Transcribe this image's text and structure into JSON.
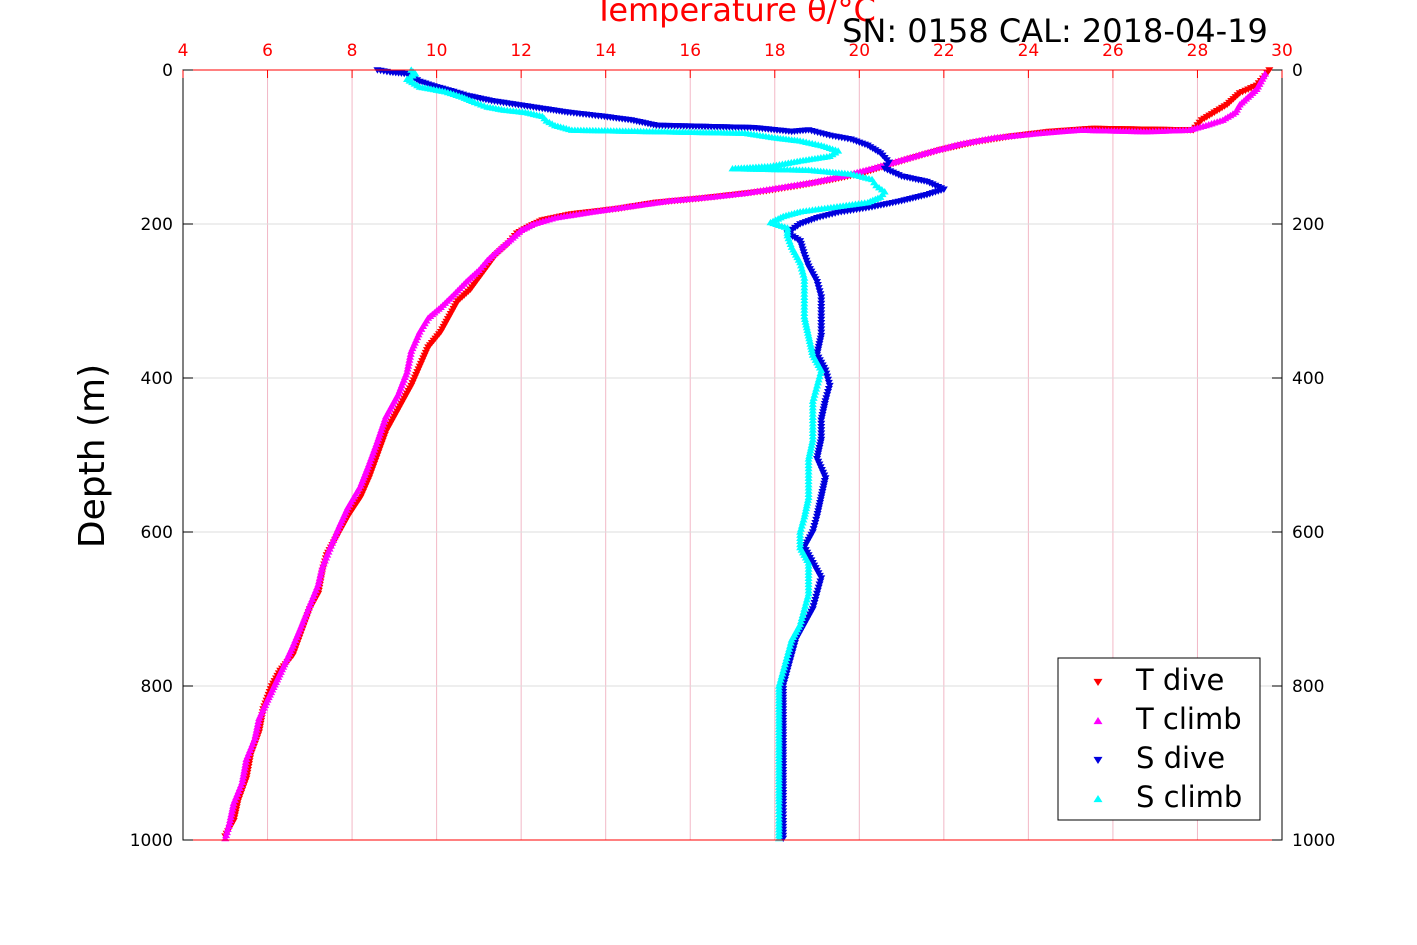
{
  "chart_data": {
    "type": "scatter",
    "title": "Temperature θ/°C",
    "subtitle": "SN: 0158  CAL: 2018-04-19",
    "xlabel": "Temperature θ/°C",
    "ylabel": "Depth (m)",
    "xlim": [
      4,
      30
    ],
    "ylim": [
      0,
      1000
    ],
    "y_reversed": true,
    "grid": true,
    "legend_position": "bottom-right",
    "x_ticks": [
      "4",
      "6",
      "8",
      "10",
      "12",
      "14",
      "16",
      "18",
      "20",
      "22",
      "24",
      "26",
      "28",
      "30"
    ],
    "y_ticks": [
      "0",
      "200",
      "400",
      "600",
      "800",
      "1000"
    ],
    "colors": {
      "axis_top": "#ff0000",
      "grid": "#dddddd",
      "grid_x": "#f2b8c6"
    },
    "series": [
      {
        "name": "T dive",
        "marker": "triangle-down",
        "color": "#ff0000",
        "points": [
          [
            29.7,
            0
          ],
          [
            29.6,
            8
          ],
          [
            29.4,
            20
          ],
          [
            29.0,
            30
          ],
          [
            28.7,
            45
          ],
          [
            28.4,
            55
          ],
          [
            28.1,
            65
          ],
          [
            27.9,
            78
          ],
          [
            25.5,
            76
          ],
          [
            24.5,
            80
          ],
          [
            23.6,
            86
          ],
          [
            22.7,
            94
          ],
          [
            21.9,
            104
          ],
          [
            21.2,
            115
          ],
          [
            20.6,
            125
          ],
          [
            20.0,
            135
          ],
          [
            19.3,
            143
          ],
          [
            18.6,
            150
          ],
          [
            17.8,
            157
          ],
          [
            17.0,
            162
          ],
          [
            16.2,
            167
          ],
          [
            15.2,
            172
          ],
          [
            14.3,
            180
          ],
          [
            13.2,
            187
          ],
          [
            12.5,
            195
          ],
          [
            12.2,
            203
          ],
          [
            11.9,
            212
          ],
          [
            11.7,
            225
          ],
          [
            11.4,
            240
          ],
          [
            11.2,
            255
          ],
          [
            11.0,
            270
          ],
          [
            10.8,
            285
          ],
          [
            10.5,
            300
          ],
          [
            10.3,
            320
          ],
          [
            10.1,
            340
          ],
          [
            9.8,
            360
          ],
          [
            9.6,
            385
          ],
          [
            9.4,
            410
          ],
          [
            9.1,
            440
          ],
          [
            8.8,
            470
          ],
          [
            8.6,
            500
          ],
          [
            8.4,
            530
          ],
          [
            8.2,
            555
          ],
          [
            7.9,
            580
          ],
          [
            7.6,
            610
          ],
          [
            7.4,
            630
          ],
          [
            7.3,
            650
          ],
          [
            7.2,
            680
          ],
          [
            7.0,
            700
          ],
          [
            6.8,
            730
          ],
          [
            6.6,
            760
          ],
          [
            6.3,
            780
          ],
          [
            6.1,
            800
          ],
          [
            5.9,
            830
          ],
          [
            5.8,
            860
          ],
          [
            5.6,
            890
          ],
          [
            5.5,
            920
          ],
          [
            5.3,
            950
          ],
          [
            5.2,
            975
          ],
          [
            5.0,
            995
          ]
        ]
      },
      {
        "name": "T climb",
        "marker": "triangle-up",
        "color": "#ff00ff",
        "points": [
          [
            29.6,
            5
          ],
          [
            29.5,
            15
          ],
          [
            29.4,
            25
          ],
          [
            29.2,
            35
          ],
          [
            29.0,
            45
          ],
          [
            28.9,
            55
          ],
          [
            28.6,
            65
          ],
          [
            28.2,
            72
          ],
          [
            27.8,
            78
          ],
          [
            26.8,
            80
          ],
          [
            25.2,
            78
          ],
          [
            24.3,
            82
          ],
          [
            23.2,
            88
          ],
          [
            22.4,
            96
          ],
          [
            21.7,
            106
          ],
          [
            21.0,
            117
          ],
          [
            20.3,
            128
          ],
          [
            19.6,
            138
          ],
          [
            18.9,
            146
          ],
          [
            18.1,
            153
          ],
          [
            17.3,
            160
          ],
          [
            16.5,
            165
          ],
          [
            15.5,
            170
          ],
          [
            14.6,
            177
          ],
          [
            13.6,
            185
          ],
          [
            12.8,
            192
          ],
          [
            12.3,
            200
          ],
          [
            12.0,
            208
          ],
          [
            11.8,
            218
          ],
          [
            11.5,
            232
          ],
          [
            11.2,
            247
          ],
          [
            11.0,
            260
          ],
          [
            10.7,
            275
          ],
          [
            10.4,
            292
          ],
          [
            10.1,
            308
          ],
          [
            9.8,
            322
          ],
          [
            9.6,
            340
          ],
          [
            9.4,
            365
          ],
          [
            9.3,
            392
          ],
          [
            9.1,
            420
          ],
          [
            8.8,
            450
          ],
          [
            8.6,
            482
          ],
          [
            8.4,
            512
          ],
          [
            8.2,
            540
          ],
          [
            7.9,
            568
          ],
          [
            7.7,
            592
          ],
          [
            7.5,
            618
          ],
          [
            7.3,
            645
          ],
          [
            7.2,
            668
          ],
          [
            7.0,
            695
          ],
          [
            6.8,
            722
          ],
          [
            6.6,
            748
          ],
          [
            6.4,
            772
          ],
          [
            6.2,
            795
          ],
          [
            6.0,
            818
          ],
          [
            5.8,
            842
          ],
          [
            5.7,
            868
          ],
          [
            5.5,
            895
          ],
          [
            5.4,
            925
          ],
          [
            5.2,
            952
          ],
          [
            5.1,
            978
          ],
          [
            5.0,
            998
          ]
        ]
      },
      {
        "name": "S dive",
        "marker": "triangle-down",
        "color": "#0000dd",
        "points": [
          [
            8.6,
            0
          ],
          [
            8.9,
            3
          ],
          [
            9.3,
            5
          ],
          [
            9.6,
            15
          ],
          [
            10.0,
            22
          ],
          [
            10.4,
            28
          ],
          [
            10.7,
            33
          ],
          [
            11.3,
            40
          ],
          [
            12.5,
            50
          ],
          [
            13.1,
            55
          ],
          [
            13.9,
            60
          ],
          [
            14.6,
            65
          ],
          [
            15.2,
            72
          ],
          [
            17.5,
            75
          ],
          [
            18.4,
            80
          ],
          [
            18.8,
            78
          ],
          [
            19.3,
            85
          ],
          [
            19.8,
            90
          ],
          [
            20.2,
            98
          ],
          [
            20.5,
            108
          ],
          [
            20.7,
            120
          ],
          [
            20.6,
            128
          ],
          [
            21.0,
            138
          ],
          [
            21.6,
            145
          ],
          [
            22.0,
            155
          ],
          [
            21.6,
            162
          ],
          [
            21.0,
            170
          ],
          [
            20.3,
            178
          ],
          [
            19.5,
            185
          ],
          [
            19.0,
            192
          ],
          [
            18.6,
            200
          ],
          [
            18.3,
            212
          ],
          [
            18.6,
            222
          ],
          [
            18.7,
            240
          ],
          [
            18.8,
            255
          ],
          [
            19.0,
            275
          ],
          [
            19.1,
            295
          ],
          [
            19.1,
            320
          ],
          [
            19.1,
            345
          ],
          [
            19.0,
            370
          ],
          [
            19.2,
            390
          ],
          [
            19.3,
            410
          ],
          [
            19.2,
            430
          ],
          [
            19.1,
            455
          ],
          [
            19.1,
            480
          ],
          [
            19.0,
            505
          ],
          [
            19.2,
            530
          ],
          [
            19.1,
            555
          ],
          [
            19.0,
            580
          ],
          [
            18.9,
            600
          ],
          [
            18.7,
            620
          ],
          [
            18.9,
            640
          ],
          [
            19.1,
            660
          ],
          [
            19.0,
            680
          ],
          [
            18.9,
            700
          ],
          [
            18.7,
            720
          ],
          [
            18.5,
            740
          ],
          [
            18.4,
            760
          ],
          [
            18.3,
            780
          ],
          [
            18.2,
            800
          ],
          [
            18.2,
            830
          ],
          [
            18.2,
            860
          ],
          [
            18.2,
            890
          ],
          [
            18.2,
            920
          ],
          [
            18.2,
            950
          ],
          [
            18.2,
            975
          ],
          [
            18.2,
            998
          ]
        ]
      },
      {
        "name": "S climb",
        "marker": "triangle-up",
        "color": "#00ffff",
        "points": [
          [
            9.4,
            0
          ],
          [
            9.5,
            5
          ],
          [
            9.3,
            12
          ],
          [
            9.6,
            22
          ],
          [
            10.2,
            28
          ],
          [
            10.6,
            35
          ],
          [
            10.9,
            42
          ],
          [
            11.2,
            48
          ],
          [
            11.6,
            52
          ],
          [
            12.1,
            55
          ],
          [
            12.5,
            60
          ],
          [
            12.6,
            66
          ],
          [
            12.8,
            72
          ],
          [
            13.2,
            78
          ],
          [
            17.3,
            82
          ],
          [
            18.0,
            88
          ],
          [
            18.6,
            92
          ],
          [
            19.1,
            98
          ],
          [
            19.5,
            105
          ],
          [
            19.3,
            112
          ],
          [
            18.6,
            118
          ],
          [
            17.9,
            125
          ],
          [
            17.0,
            128
          ],
          [
            18.8,
            130
          ],
          [
            19.8,
            135
          ],
          [
            20.3,
            142
          ],
          [
            20.4,
            150
          ],
          [
            20.6,
            158
          ],
          [
            20.5,
            165
          ],
          [
            20.2,
            172
          ],
          [
            19.4,
            178
          ],
          [
            18.6,
            184
          ],
          [
            18.2,
            190
          ],
          [
            17.9,
            198
          ],
          [
            18.3,
            205
          ],
          [
            18.3,
            215
          ],
          [
            18.4,
            230
          ],
          [
            18.6,
            250
          ],
          [
            18.7,
            270
          ],
          [
            18.7,
            295
          ],
          [
            18.7,
            320
          ],
          [
            18.8,
            345
          ],
          [
            18.9,
            370
          ],
          [
            19.1,
            390
          ],
          [
            19.0,
            410
          ],
          [
            18.9,
            430
          ],
          [
            18.9,
            455
          ],
          [
            18.9,
            480
          ],
          [
            18.8,
            505
          ],
          [
            18.8,
            530
          ],
          [
            18.8,
            555
          ],
          [
            18.7,
            580
          ],
          [
            18.6,
            600
          ],
          [
            18.6,
            620
          ],
          [
            18.8,
            640
          ],
          [
            18.8,
            660
          ],
          [
            18.8,
            680
          ],
          [
            18.7,
            700
          ],
          [
            18.6,
            720
          ],
          [
            18.4,
            740
          ],
          [
            18.3,
            760
          ],
          [
            18.2,
            780
          ],
          [
            18.1,
            800
          ],
          [
            18.1,
            830
          ],
          [
            18.1,
            860
          ],
          [
            18.1,
            890
          ],
          [
            18.1,
            920
          ],
          [
            18.1,
            950
          ],
          [
            18.1,
            975
          ],
          [
            18.1,
            998
          ]
        ]
      }
    ]
  }
}
